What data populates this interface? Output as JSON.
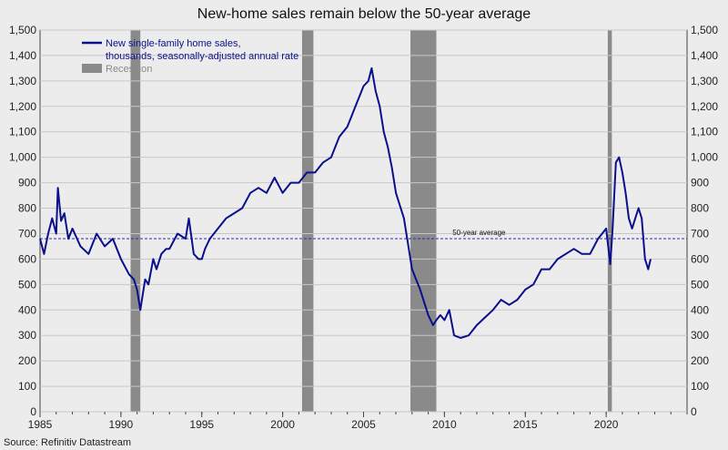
{
  "chart_data": {
    "type": "line",
    "title": "New-home sales remain below the 50-year average",
    "source": "Source: Refinitiv Datastream",
    "xlim": [
      1985,
      2025
    ],
    "ylim": [
      0,
      1500
    ],
    "y_ticks": [
      0,
      100,
      200,
      300,
      400,
      500,
      600,
      700,
      800,
      900,
      1000,
      1100,
      1200,
      1300,
      1400,
      1500
    ],
    "y_tick_labels": [
      "0",
      "100",
      "200",
      "300",
      "400",
      "500",
      "600",
      "700",
      "800",
      "900",
      "1,000",
      "1,100",
      "1,200",
      "1,300",
      "1,400",
      "1,500"
    ],
    "x_ticks": [
      1985,
      1990,
      1995,
      2000,
      2005,
      2010,
      2015,
      2020
    ],
    "x_tick_labels": [
      "1985",
      "1990",
      "1995",
      "2000",
      "2005",
      "2010",
      "2015",
      "2020"
    ],
    "grid": true,
    "legend_position": "top-left",
    "series": [
      {
        "name": "New single-family home sales, thousands, seasonally-adjusted annual rate",
        "legend_lines": [
          "New single-family home sales,",
          "thousands, seasonally-adjusted annual rate"
        ],
        "color": "#0a0f8c",
        "x": [
          1985.0,
          1985.25,
          1985.5,
          1985.75,
          1986.0,
          1986.1,
          1986.3,
          1986.5,
          1986.75,
          1987.0,
          1987.5,
          1988.0,
          1988.5,
          1989.0,
          1989.5,
          1990.0,
          1990.5,
          1990.8,
          1991.0,
          1991.2,
          1991.5,
          1991.7,
          1992.0,
          1992.2,
          1992.5,
          1992.8,
          1993.0,
          1993.5,
          1994.0,
          1994.2,
          1994.5,
          1994.8,
          1995.0,
          1995.2,
          1995.5,
          1996.0,
          1996.5,
          1997.0,
          1997.5,
          1998.0,
          1998.5,
          1999.0,
          1999.5,
          2000.0,
          2000.5,
          2001.0,
          2001.5,
          2002.0,
          2002.5,
          2003.0,
          2003.5,
          2004.0,
          2004.5,
          2005.0,
          2005.3,
          2005.5,
          2005.75,
          2006.0,
          2006.25,
          2006.5,
          2006.75,
          2007.0,
          2007.5,
          2008.0,
          2008.5,
          2009.0,
          2009.3,
          2009.5,
          2009.75,
          2010.0,
          2010.3,
          2010.6,
          2011.0,
          2011.5,
          2012.0,
          2012.5,
          2013.0,
          2013.5,
          2014.0,
          2014.5,
          2015.0,
          2015.5,
          2016.0,
          2016.5,
          2017.0,
          2017.5,
          2018.0,
          2018.5,
          2019.0,
          2019.5,
          2020.0,
          2020.25,
          2020.4,
          2020.6,
          2020.8,
          2021.0,
          2021.2,
          2021.4,
          2021.6,
          2021.8,
          2022.0,
          2022.2,
          2022.4,
          2022.5,
          2022.6,
          2022.75
        ],
        "values": [
          680,
          620,
          700,
          760,
          700,
          880,
          750,
          780,
          680,
          720,
          650,
          620,
          700,
          650,
          680,
          600,
          540,
          520,
          480,
          400,
          520,
          500,
          600,
          560,
          620,
          640,
          640,
          700,
          680,
          760,
          620,
          600,
          600,
          640,
          680,
          720,
          760,
          780,
          800,
          860,
          880,
          860,
          920,
          860,
          900,
          900,
          940,
          940,
          980,
          1000,
          1080,
          1120,
          1200,
          1280,
          1300,
          1350,
          1260,
          1200,
          1100,
          1040,
          960,
          860,
          760,
          560,
          480,
          380,
          340,
          360,
          380,
          360,
          400,
          300,
          290,
          300,
          340,
          370,
          400,
          440,
          420,
          440,
          480,
          500,
          560,
          560,
          600,
          620,
          640,
          620,
          620,
          680,
          720,
          580,
          720,
          980,
          1000,
          940,
          860,
          760,
          720,
          760,
          800,
          760,
          600,
          580,
          560,
          600
        ]
      }
    ],
    "reference_line": {
      "value": 680,
      "label": "50-year average",
      "color": "#2a2ab5"
    },
    "recession": {
      "name": "Recession",
      "color": "#8a8a8a",
      "periods": [
        [
          1990.6,
          1991.2
        ],
        [
          2001.2,
          2001.9
        ],
        [
          2007.9,
          2009.5
        ],
        [
          2020.1,
          2020.35
        ]
      ]
    }
  }
}
